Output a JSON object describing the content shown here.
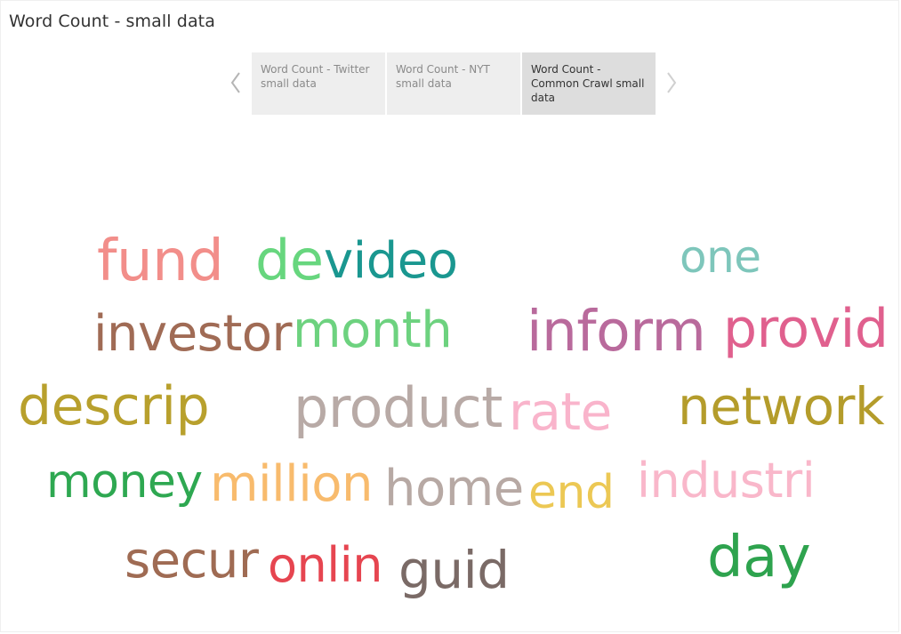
{
  "header": {
    "title": "Word Count - small data"
  },
  "nav": {
    "prev_icon": "chevron-left-icon",
    "next_icon": "chevron-right-icon",
    "tabs": [
      {
        "label": "Word Count - Twitter small data",
        "active": false
      },
      {
        "label": "Word Count - NYT small data",
        "active": false
      },
      {
        "label": "Word Count - Common Crawl small data",
        "active": true
      }
    ]
  },
  "word_cloud": {
    "words": [
      {
        "text": "fund",
        "color": "#f28e8a"
      },
      {
        "text": "de",
        "color": "#67d67e"
      },
      {
        "text": "video",
        "color": "#1a9790"
      },
      {
        "text": "one",
        "color": "#7ec6bb"
      },
      {
        "text": "investor",
        "color": "#a06b55"
      },
      {
        "text": "month",
        "color": "#6dd27f"
      },
      {
        "text": "inform",
        "color": "#b96a9c"
      },
      {
        "text": "provid",
        "color": "#e0608e"
      },
      {
        "text": "descrip",
        "color": "#b8a02d"
      },
      {
        "text": "product",
        "color": "#b8aaa6"
      },
      {
        "text": "rate",
        "color": "#f9b4cb"
      },
      {
        "text": "network",
        "color": "#b49c2b"
      },
      {
        "text": "money",
        "color": "#2ea851"
      },
      {
        "text": "million",
        "color": "#f8bb6d"
      },
      {
        "text": "home",
        "color": "#b7a9a4"
      },
      {
        "text": "end",
        "color": "#ecc854"
      },
      {
        "text": "industri",
        "color": "#f9b7ca"
      },
      {
        "text": "secur",
        "color": "#9f6b53"
      },
      {
        "text": "onlin",
        "color": "#e64550"
      },
      {
        "text": "guid",
        "color": "#7a6a66"
      },
      {
        "text": "day",
        "color": "#2ea34e"
      }
    ]
  }
}
